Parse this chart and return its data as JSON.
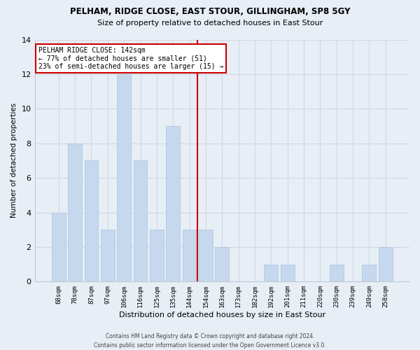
{
  "title1": "PELHAM, RIDGE CLOSE, EAST STOUR, GILLINGHAM, SP8 5GY",
  "title2": "Size of property relative to detached houses in East Stour",
  "xlabel": "Distribution of detached houses by size in East Stour",
  "ylabel": "Number of detached properties",
  "categories": [
    "68sqm",
    "78sqm",
    "87sqm",
    "97sqm",
    "106sqm",
    "116sqm",
    "125sqm",
    "135sqm",
    "144sqm",
    "154sqm",
    "163sqm",
    "173sqm",
    "182sqm",
    "192sqm",
    "201sqm",
    "211sqm",
    "220sqm",
    "230sqm",
    "239sqm",
    "249sqm",
    "258sqm"
  ],
  "values": [
    4,
    8,
    7,
    3,
    12,
    7,
    3,
    9,
    3,
    3,
    2,
    0,
    0,
    1,
    1,
    0,
    0,
    1,
    0,
    1,
    2
  ],
  "bar_color": "#c5d8ed",
  "bar_edgecolor": "#a8c4de",
  "grid_color": "#d0d8e4",
  "bg_color": "#e8eef5",
  "vline_color": "#cc0000",
  "vline_index": 8,
  "annotation_title": "PELHAM RIDGE CLOSE: 142sqm",
  "annotation_line1": "← 77% of detached houses are smaller (51)",
  "annotation_line2": "23% of semi-detached houses are larger (15) →",
  "annotation_box_color": "#ffffff",
  "annotation_box_edgecolor": "#cc0000",
  "footnote1": "Contains HM Land Registry data © Crown copyright and database right 2024.",
  "footnote2": "Contains public sector information licensed under the Open Government Licence v3.0.",
  "ylim": [
    0,
    14
  ],
  "yticks": [
    0,
    2,
    4,
    6,
    8,
    10,
    12,
    14
  ]
}
